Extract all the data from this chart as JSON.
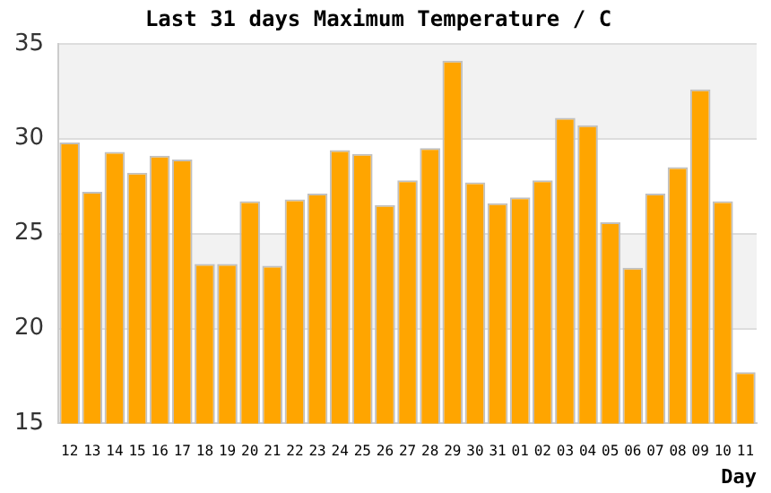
{
  "chart_data": {
    "type": "bar",
    "title": "Last 31 days Maximum Temperature / C",
    "xlabel": "Day",
    "categories": [
      "12",
      "13",
      "14",
      "15",
      "16",
      "17",
      "18",
      "19",
      "20",
      "21",
      "22",
      "23",
      "24",
      "25",
      "26",
      "27",
      "28",
      "29",
      "30",
      "31",
      "01",
      "02",
      "03",
      "04",
      "05",
      "06",
      "07",
      "08",
      "09",
      "10",
      "11"
    ],
    "values": [
      29.8,
      27.2,
      29.3,
      28.2,
      29.1,
      28.9,
      23.4,
      23.4,
      26.7,
      23.3,
      26.8,
      27.1,
      29.4,
      29.2,
      26.5,
      27.8,
      29.5,
      34.1,
      27.7,
      26.6,
      26.9,
      27.8,
      31.1,
      30.7,
      25.6,
      23.2,
      27.1,
      28.5,
      32.6,
      26.7,
      17.7
    ],
    "color": "#ffa500",
    "ylim": [
      15,
      35
    ],
    "yticks": [
      15,
      20,
      25,
      30,
      35
    ],
    "grid": "y",
    "legend": false
  }
}
